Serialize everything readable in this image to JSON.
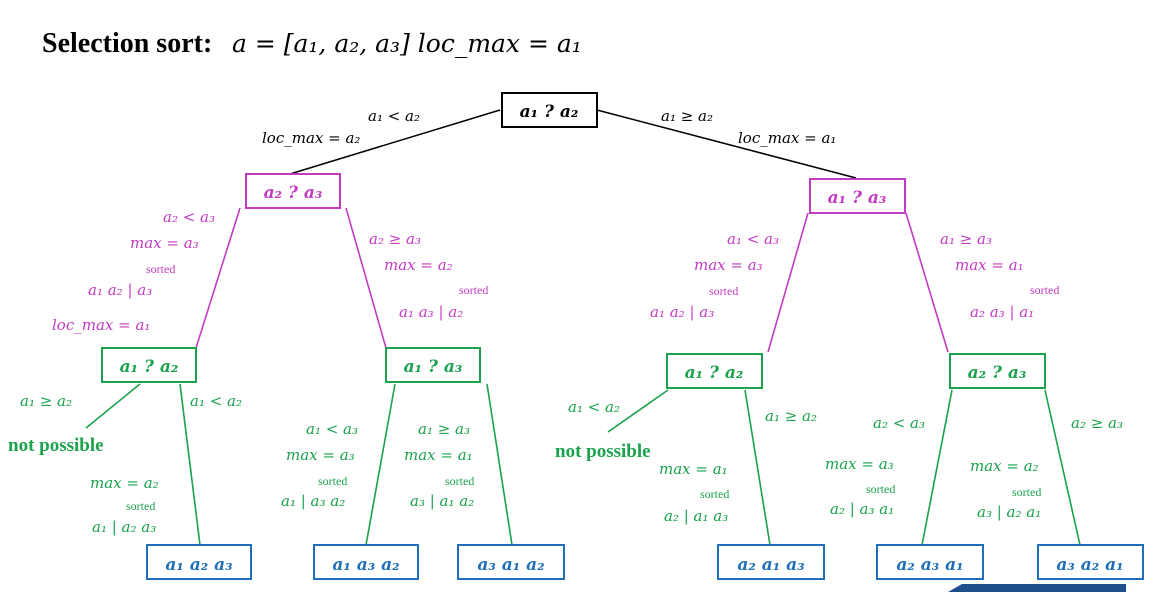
{
  "title": {
    "bold": "Selection sort:",
    "math": "a = [a₁, a₂, a₃]  loc_max = a₁"
  },
  "nodes": {
    "root": "a₁ ? a₂",
    "left": "a₂ ? a₃",
    "right": "a₁ ? a₃",
    "ll": "a₁ ? a₂",
    "lr": "a₁ ? a₃",
    "rl": "a₁ ? a₂",
    "rr": "a₂ ? a₃"
  },
  "leaves": [
    "a₁ a₂ a₃",
    "a₁ a₃ a₂",
    "a₃ a₁ a₂",
    "a₂ a₁ a₃",
    "a₂ a₃ a₁",
    "a₃ a₂ a₁"
  ],
  "edges": {
    "root_left": [
      "a₁ < a₂",
      "loc_max = a₂"
    ],
    "root_right": [
      "a₁ ≥ a₂",
      "loc_max = a₁"
    ],
    "left_left": [
      "a₂ < a₃",
      "max = a₃",
      "sorted",
      "a₁ a₂ | a₃",
      "loc_max = a₁"
    ],
    "left_right": [
      "a₂ ≥ a₃",
      "max = a₂",
      "sorted",
      "a₁ a₃ | a₂"
    ],
    "right_left": [
      "a₁ < a₃",
      "max = a₃",
      "sorted",
      "a₁ a₂ | a₃"
    ],
    "right_right": [
      "a₁ ≥ a₃",
      "max = a₁",
      "sorted",
      "a₂ a₃ | a₁"
    ],
    "ll_left": "a₁ ≥ a₂",
    "ll_right": [
      "a₁ < a₂",
      "max = a₂",
      "sorted",
      "a₁ | a₂ a₃"
    ],
    "lr_left": [
      "a₁ < a₃",
      "max = a₃",
      "sorted",
      "a₁ | a₃ a₂"
    ],
    "lr_right": [
      "a₁ ≥ a₃",
      "max = a₁",
      "sorted",
      "a₃ | a₁ a₂"
    ],
    "rl_left": "a₁ < a₂",
    "rl_right": [
      "a₁ ≥ a₂",
      "max = a₁",
      "sorted",
      "a₂ | a₁ a₃"
    ],
    "rr_left": [
      "a₂ < a₃",
      "max = a₃",
      "sorted",
      "a₂ | a₃ a₁"
    ],
    "rr_right": [
      "a₂ ≥ a₃",
      "max = a₂",
      "sorted",
      "a₃ | a₂ a₁"
    ]
  },
  "not_possible": "not possible",
  "colors": {
    "level0": "#000000",
    "level1": "#c23bc2",
    "level2": "#1aa24d",
    "leaf": "#1f6fb8"
  }
}
